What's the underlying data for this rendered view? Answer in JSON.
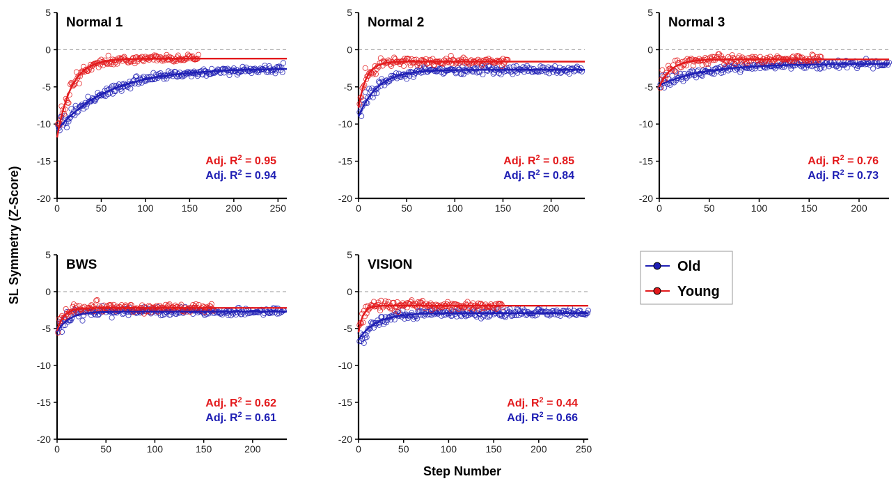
{
  "figure": {
    "ylabel": "SL Symmetry (Z-Score)",
    "xlabel": "Step Number"
  },
  "legend": {
    "position": "right of bottom row",
    "items": [
      {
        "label": "Old",
        "color": "#1f1fb4"
      },
      {
        "label": "Young",
        "color": "#e31a1c"
      }
    ]
  },
  "colors": {
    "old": "#1f1fb4",
    "young": "#e31a1c",
    "zero_line": "#9a9a9a"
  },
  "chart_data": [
    {
      "type": "scatter",
      "title": "Normal 1",
      "xlim": [
        0,
        260
      ],
      "ylim": [
        -20,
        5
      ],
      "xticks": [
        0,
        50,
        100,
        150,
        200,
        250
      ],
      "yticks": [
        5,
        0,
        -5,
        -10,
        -15,
        -20
      ],
      "reference_line_y": 0,
      "annotations": [
        {
          "prefix": "Adj. R",
          "sup": "2",
          "suffix": " = 0.95",
          "color": "#e31a1c"
        },
        {
          "prefix": "Adj. R",
          "sup": "2",
          "suffix": " = 0.94",
          "color": "#1f1fb4"
        }
      ],
      "series": [
        {
          "name": "Old",
          "color": "#1f1fb4",
          "n_steps": 256,
          "fit": {
            "start": -10.8,
            "plateau": -2.5,
            "tau": 58
          }
        },
        {
          "name": "Young",
          "color": "#e31a1c",
          "n_steps": 160,
          "fit": {
            "start": -11.8,
            "plateau": -1.2,
            "tau": 16
          }
        }
      ]
    },
    {
      "type": "scatter",
      "title": "Normal 2",
      "xlim": [
        0,
        235
      ],
      "ylim": [
        -20,
        5
      ],
      "xticks": [
        0,
        50,
        100,
        150,
        200
      ],
      "yticks": [
        5,
        0,
        -5,
        -10,
        -15,
        -20
      ],
      "reference_line_y": 0,
      "annotations": [
        {
          "prefix": "Adj. R",
          "sup": "2",
          "suffix": " = 0.85",
          "color": "#e31a1c"
        },
        {
          "prefix": "Adj. R",
          "sup": "2",
          "suffix": " = 0.84",
          "color": "#1f1fb4"
        }
      ],
      "series": [
        {
          "name": "Old",
          "color": "#1f1fb4",
          "n_steps": 232,
          "fit": {
            "start": -9.0,
            "plateau": -2.7,
            "tau": 20
          }
        },
        {
          "name": "Young",
          "color": "#e31a1c",
          "n_steps": 155,
          "fit": {
            "start": -7.8,
            "plateau": -1.6,
            "tau": 8
          }
        }
      ]
    },
    {
      "type": "scatter",
      "title": "Normal 3",
      "xlim": [
        0,
        230
      ],
      "ylim": [
        -20,
        5
      ],
      "xticks": [
        0,
        50,
        100,
        150,
        200
      ],
      "yticks": [
        5,
        0,
        -5,
        -10,
        -15,
        -20
      ],
      "reference_line_y": 0,
      "annotations": [
        {
          "prefix": "Adj. R",
          "sup": "2",
          "suffix": " = 0.76",
          "color": "#e31a1c"
        },
        {
          "prefix": "Adj. R",
          "sup": "2",
          "suffix": " = 0.73",
          "color": "#1f1fb4"
        }
      ],
      "series": [
        {
          "name": "Old",
          "color": "#1f1fb4",
          "n_steps": 230,
          "fit": {
            "start": -4.8,
            "plateau": -1.9,
            "tau": 45
          }
        },
        {
          "name": "Young",
          "color": "#e31a1c",
          "n_steps": 162,
          "fit": {
            "start": -5.0,
            "plateau": -1.3,
            "tau": 12
          }
        }
      ]
    },
    {
      "type": "scatter",
      "title": "BWS",
      "xlim": [
        0,
        235
      ],
      "ylim": [
        -20,
        5
      ],
      "xticks": [
        0,
        50,
        100,
        150,
        200
      ],
      "yticks": [
        5,
        0,
        -5,
        -10,
        -15,
        -20
      ],
      "reference_line_y": 0,
      "annotations": [
        {
          "prefix": "Adj. R",
          "sup": "2",
          "suffix": " = 0.62",
          "color": "#e31a1c"
        },
        {
          "prefix": "Adj. R",
          "sup": "2",
          "suffix": " = 0.61",
          "color": "#1f1fb4"
        }
      ],
      "series": [
        {
          "name": "Old",
          "color": "#1f1fb4",
          "n_steps": 232,
          "fit": {
            "start": -5.5,
            "plateau": -2.7,
            "tau": 12
          }
        },
        {
          "name": "Young",
          "color": "#e31a1c",
          "n_steps": 160,
          "fit": {
            "start": -5.3,
            "plateau": -2.2,
            "tau": 7
          }
        }
      ]
    },
    {
      "type": "scatter",
      "title": "VISION",
      "xlim": [
        0,
        255
      ],
      "ylim": [
        -20,
        5
      ],
      "xticks": [
        0,
        50,
        100,
        150,
        200,
        250
      ],
      "yticks": [
        5,
        0,
        -5,
        -10,
        -15,
        -20
      ],
      "reference_line_y": 0,
      "annotations": [
        {
          "prefix": "Adj. R",
          "sup": "2",
          "suffix": " = 0.44",
          "color": "#e31a1c"
        },
        {
          "prefix": "Adj. R",
          "sup": "2",
          "suffix": " = 0.66",
          "color": "#1f1fb4"
        }
      ],
      "series": [
        {
          "name": "Old",
          "color": "#1f1fb4",
          "n_steps": 255,
          "fit": {
            "start": -6.5,
            "plateau": -2.9,
            "tau": 20
          }
        },
        {
          "name": "Young",
          "color": "#e31a1c",
          "n_steps": 160,
          "fit": {
            "start": -5.5,
            "plateau": -1.9,
            "tau": 5
          }
        }
      ]
    }
  ]
}
